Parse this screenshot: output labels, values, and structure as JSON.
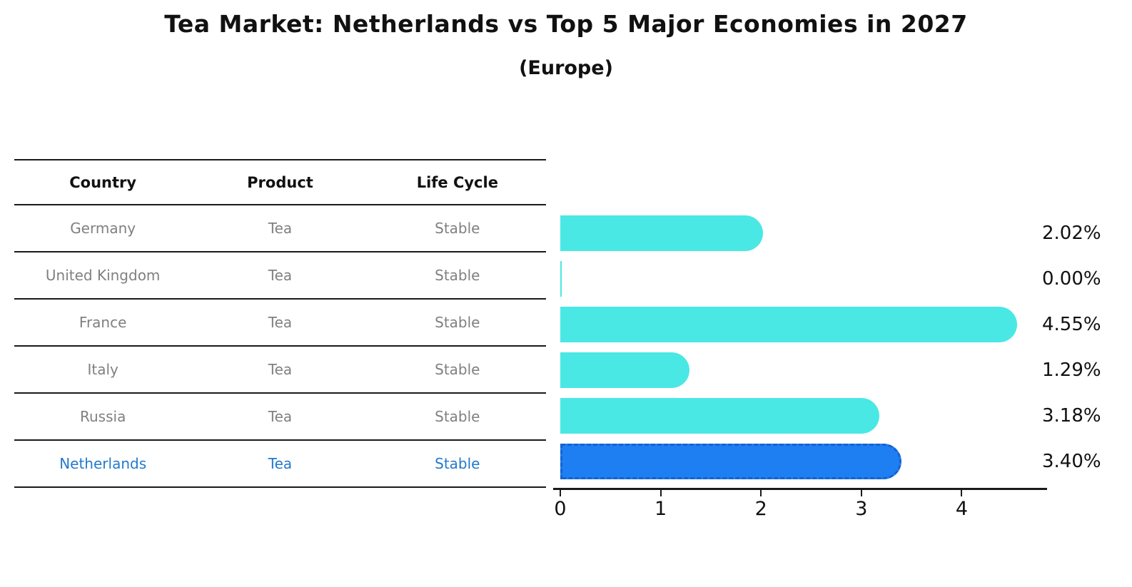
{
  "header": {
    "title": "Tea Market: Netherlands vs Top 5 Major Economies in 2027",
    "subtitle": "(Europe)"
  },
  "table": {
    "headers": [
      "Country",
      "Product",
      "Life Cycle"
    ],
    "rows": [
      {
        "country": "Germany",
        "product": "Tea",
        "life_cycle": "Stable",
        "highlight": false
      },
      {
        "country": "United Kingdom",
        "product": "Tea",
        "life_cycle": "Stable",
        "highlight": false
      },
      {
        "country": "France",
        "product": "Tea",
        "life_cycle": "Stable",
        "highlight": false
      },
      {
        "country": "Italy",
        "product": "Tea",
        "life_cycle": "Stable",
        "highlight": false
      },
      {
        "country": "Russia",
        "product": "Tea",
        "life_cycle": "Stable",
        "highlight": false
      },
      {
        "country": "Netherlands",
        "product": "Tea",
        "life_cycle": "Stable",
        "highlight": true
      }
    ]
  },
  "chart_data": {
    "type": "bar",
    "orientation": "horizontal",
    "title": "Tea Market: Netherlands vs Top 5 Major Economies in 2027",
    "subtitle": "(Europe)",
    "categories": [
      "Germany",
      "United Kingdom",
      "France",
      "Italy",
      "Russia",
      "Netherlands"
    ],
    "values": [
      2.02,
      0.0,
      4.55,
      1.29,
      3.18,
      3.4
    ],
    "value_labels": [
      "2.02%",
      "0.00%",
      "4.55%",
      "1.29%",
      "3.18%",
      "3.40%"
    ],
    "highlight_index": 5,
    "xlabel": "",
    "ylabel": "",
    "xlim": [
      0,
      4.85
    ],
    "xticks": [
      0,
      1,
      2,
      3,
      4
    ],
    "grid": false,
    "legend": false
  },
  "colors": {
    "bar": "#4ae8e4",
    "hl-bar": "#1e7ff2",
    "hl-border": "#1563cf",
    "hl-text": "#2379cd",
    "row-text": "#808080",
    "ink": "#111111"
  }
}
